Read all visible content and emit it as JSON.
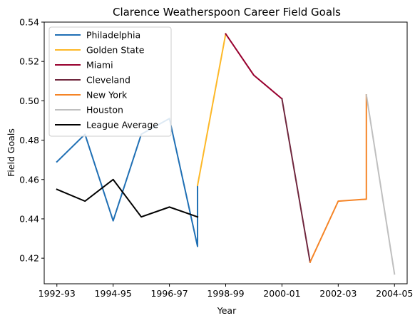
{
  "chart_data": {
    "type": "line",
    "title": "Clarence Weatherspoon Career Field Goals",
    "xlabel": "Year",
    "ylabel": "Field Goals",
    "xlim": [
      1991.55,
      2004.45
    ],
    "ylim": [
      0.407,
      0.54
    ],
    "x_ticks": [
      {
        "x": 1992,
        "label": "1992-93"
      },
      {
        "x": 1994,
        "label": "1994-95"
      },
      {
        "x": 1996,
        "label": "1996-97"
      },
      {
        "x": 1998,
        "label": "1998-99"
      },
      {
        "x": 2000,
        "label": "2000-01"
      },
      {
        "x": 2002,
        "label": "2002-03"
      },
      {
        "x": 2004,
        "label": "2004-05"
      }
    ],
    "y_ticks": [
      0.42,
      0.44,
      0.46,
      0.48,
      0.5,
      0.52,
      0.54
    ],
    "y_tick_labels": [
      "0.42",
      "0.44",
      "0.46",
      "0.48",
      "0.50",
      "0.52",
      "0.54"
    ],
    "grid": false,
    "legend_position": "top-left",
    "series": [
      {
        "name": "Philadelphia",
        "color": "#1f6fb4",
        "points": [
          [
            1992,
            0.469
          ],
          [
            1993,
            0.483
          ],
          [
            1994,
            0.439
          ],
          [
            1995,
            0.483
          ],
          [
            1996,
            0.491
          ],
          [
            1997,
            0.426
          ],
          [
            1997,
            0.457
          ]
        ]
      },
      {
        "name": "Golden State",
        "color": "#fdb827",
        "points": [
          [
            1997,
            0.457
          ],
          [
            1998,
            0.534
          ]
        ]
      },
      {
        "name": "Miami",
        "color": "#98002e",
        "points": [
          [
            1998,
            0.534
          ],
          [
            1999,
            0.513
          ],
          [
            2000,
            0.501
          ]
        ]
      },
      {
        "name": "Cleveland",
        "color": "#6f263d",
        "points": [
          [
            2000,
            0.501
          ],
          [
            2001,
            0.418
          ]
        ]
      },
      {
        "name": "New York",
        "color": "#f58426",
        "points": [
          [
            2001,
            0.418
          ],
          [
            2002,
            0.449
          ],
          [
            2003,
            0.45
          ],
          [
            2003,
            0.503
          ]
        ]
      },
      {
        "name": "Houston",
        "color": "#bfbfbf",
        "points": [
          [
            2003,
            0.503
          ],
          [
            2004,
            0.412
          ]
        ]
      },
      {
        "name": "League Average",
        "color": "#000000",
        "points": [
          [
            1992,
            0.455
          ],
          [
            1993,
            0.449
          ],
          [
            1994,
            0.46
          ],
          [
            1995,
            0.441
          ],
          [
            1996,
            0.446
          ],
          [
            1997,
            0.441
          ]
        ]
      }
    ]
  }
}
